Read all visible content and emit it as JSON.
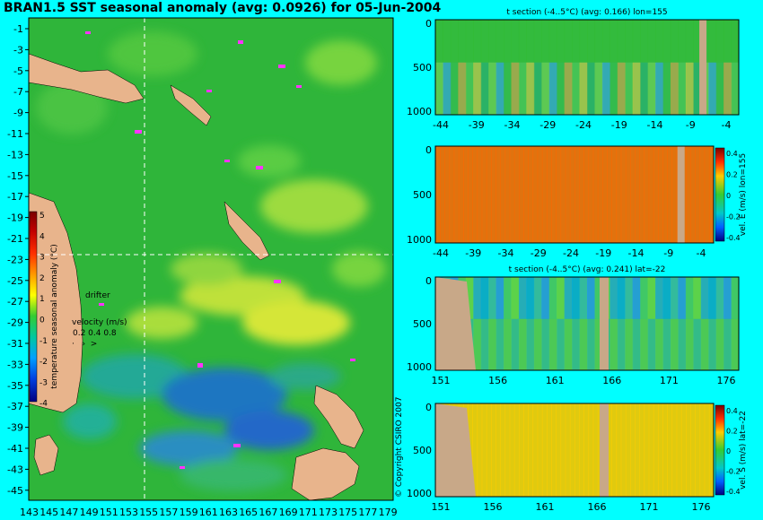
{
  "title": "BRAN1.5 SST seasonal anomaly (avg: 0.0926) for 05-Jun-2004",
  "map": {
    "lat_labels": [
      "-1",
      "-3",
      "-5",
      "-7",
      "-9",
      "-11",
      "-13",
      "-15",
      "-17",
      "-19",
      "-21",
      "-23",
      "-25",
      "-27",
      "-29",
      "-31",
      "-33",
      "-35",
      "-37",
      "-39",
      "-41",
      "-43",
      "-45"
    ],
    "lon_labels": [
      "143",
      "145",
      "147",
      "149",
      "151",
      "153",
      "155",
      "157",
      "159",
      "161",
      "163",
      "165",
      "167",
      "169",
      "171",
      "173",
      "175",
      "177",
      "179"
    ],
    "selected_lon": 155,
    "selected_lat": -22,
    "colorbar": {
      "label": "temperature seasonal anomaly (°C)",
      "ticks": [
        "5",
        "4",
        "3",
        "2",
        "1",
        "0",
        "-1",
        "-2",
        "-3",
        "-4"
      ]
    },
    "drifter_label": "drifter",
    "velocity_label": "velocity (m/s)",
    "velocity_values": "0.2 0.4 0.8",
    "copyright": "© Copyright CSIRO 2007",
    "colors": {
      "land": "#E8B48C",
      "ocean": "#2FB53A",
      "drifter": "#FF33FF",
      "background": "#00FFFF"
    }
  },
  "panels": [
    {
      "title": "t section (-4..5°C) (avg: 0.166) lon=155",
      "x_labels": [
        "-44",
        "-39",
        "-34",
        "-29",
        "-24",
        "-19",
        "-14",
        "-9",
        "-4"
      ],
      "y_labels": [
        "0",
        "500",
        "1000"
      ],
      "colorbar": null
    },
    {
      "title": "",
      "x_labels": [
        "-44",
        "-39",
        "-34",
        "-29",
        "-24",
        "-19",
        "-14",
        "-9",
        "-4"
      ],
      "y_labels": [
        "0",
        "500",
        "1000"
      ],
      "colorbar": {
        "label": "vel. E (m/s) lon=155",
        "ticks": [
          "0.4",
          "0.2",
          "0",
          "-0.2",
          "-0.4"
        ]
      }
    },
    {
      "title": "t section (-4..5°C) (avg: 0.241) lat=-22",
      "x_labels": [
        "151",
        "156",
        "161",
        "166",
        "171",
        "176"
      ],
      "y_labels": [
        "0",
        "500",
        "1000"
      ],
      "colorbar": null
    },
    {
      "title": "",
      "x_labels": [
        "151",
        "156",
        "161",
        "166",
        "171",
        "176"
      ],
      "y_labels": [
        "0",
        "500",
        "1000"
      ],
      "colorbar": {
        "label": "vel. S (m/s) lat=-22",
        "ticks": [
          "0.4",
          "0.2",
          "0",
          "-0.2",
          "-0.4"
        ]
      }
    }
  ]
}
